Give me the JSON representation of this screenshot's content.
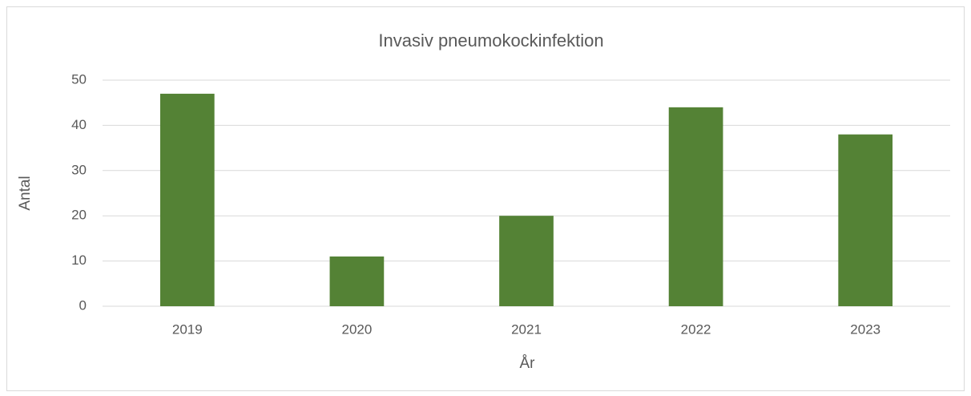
{
  "chart_data": {
    "type": "bar",
    "title": "Invasiv pneumokockinfektion",
    "x_label": "År",
    "y_label": "Antal",
    "categories": [
      "2019",
      "2020",
      "2021",
      "2022",
      "2023"
    ],
    "values": [
      47,
      11,
      20,
      44,
      38
    ],
    "color": "#548235",
    "ylim": [
      0,
      50
    ],
    "yticks": [
      0,
      10,
      20,
      30,
      40,
      50
    ],
    "grid": true
  }
}
